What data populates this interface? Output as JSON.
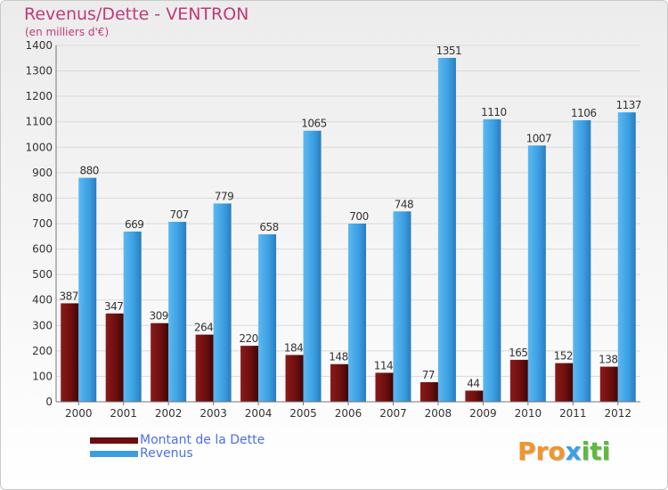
{
  "title": "Revenus/Dette - VENTRON",
  "subtitle": "(en milliers d'€)",
  "colors": {
    "title": "#c03a78",
    "dette": "#6b0e0e",
    "revenus": "#3a9ee0",
    "legend_text": "#4c6fe8",
    "grid": "#d8d8d8"
  },
  "legend": {
    "items": [
      {
        "label": "Montant de la Dette",
        "color": "#6b0e0e"
      },
      {
        "label": "Revenus",
        "color": "#3a9ee0"
      }
    ]
  },
  "logo": {
    "letters": [
      {
        "ch": "P",
        "color": "#f0962b"
      },
      {
        "ch": "r",
        "color": "#f0962b"
      },
      {
        "ch": "o",
        "color": "#f0962b"
      },
      {
        "ch": "x",
        "color": "#3aa0e0"
      },
      {
        "ch": "i",
        "color": "#5cba3c"
      },
      {
        "ch": "t",
        "color": "#5cba3c"
      },
      {
        "ch": "i",
        "color": "#5cba3c"
      }
    ]
  },
  "chart_data": {
    "type": "bar",
    "categories": [
      "2000",
      "2001",
      "2002",
      "2003",
      "2004",
      "2005",
      "2006",
      "2007",
      "2008",
      "2009",
      "2010",
      "2011",
      "2012"
    ],
    "series": [
      {
        "name": "Montant de la Dette",
        "values": [
          387,
          347,
          309,
          264,
          220,
          184,
          148,
          114,
          77,
          44,
          165,
          152,
          138
        ]
      },
      {
        "name": "Revenus",
        "values": [
          880,
          669,
          707,
          779,
          658,
          1065,
          700,
          748,
          1351,
          1110,
          1007,
          1106,
          1137
        ]
      }
    ],
    "ylim": [
      0,
      1400
    ],
    "yticks": [
      0,
      100,
      200,
      300,
      400,
      500,
      600,
      700,
      800,
      900,
      1000,
      1100,
      1200,
      1300,
      1400
    ],
    "grid": true,
    "legend_position": "bottom-left"
  }
}
